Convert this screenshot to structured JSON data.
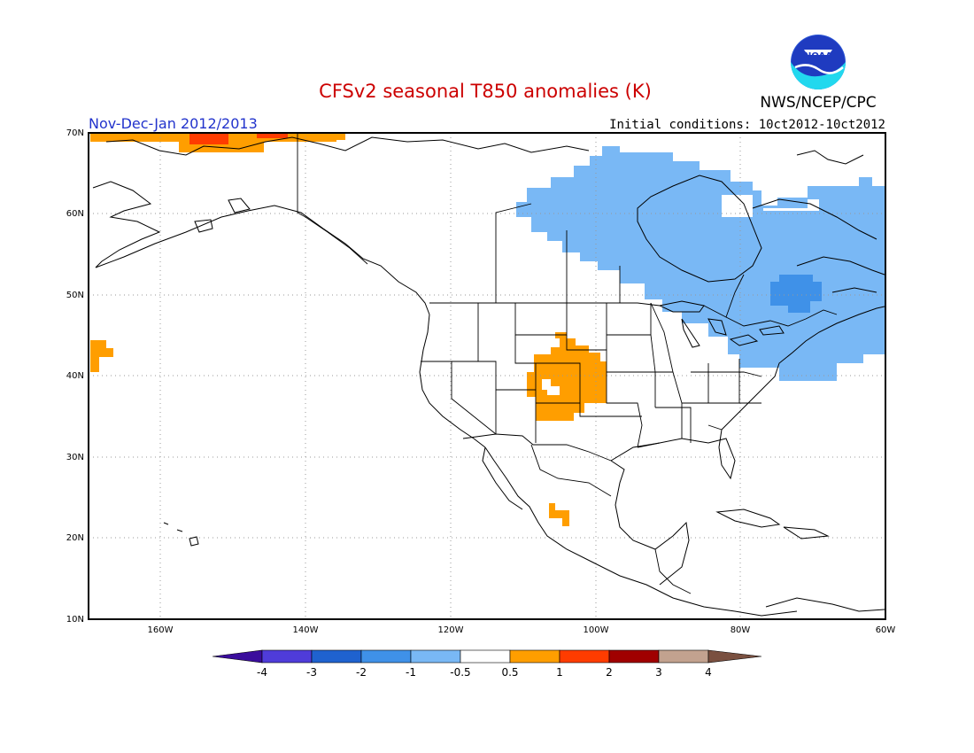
{
  "title": "CFSv2 seasonal T850 anomalies (K)",
  "period": "Nov-Dec-Jan 2012/2013",
  "initial_conditions": "Initial conditions: 10ct2012-10ct2012",
  "organization": "NWS/NCEP/CPC",
  "logo_text": "NOAA",
  "colors": {
    "title": "#cc0000",
    "period": "#2233cc",
    "neg4": "#3a0d9c",
    "neg3": "#4f3cd9",
    "neg2": "#1f62cf",
    "neg1": "#3f91e8",
    "neg05": "#79b8f5",
    "neutral": "#ffffff",
    "pos05": "#ff9e00",
    "pos1": "#ff3c00",
    "pos2": "#a00000",
    "pos3": "#c2a28f",
    "pos4": "#7a5040"
  },
  "axes": {
    "lon_labels": [
      "160W",
      "140W",
      "120W",
      "100W",
      "80W",
      "60W"
    ],
    "lat_labels": [
      "70N",
      "60N",
      "50N",
      "40N",
      "30N",
      "20N",
      "10N"
    ]
  },
  "colorbar": {
    "labels": [
      "-4",
      "-3",
      "-2",
      "-1",
      "-0.5",
      "0.5",
      "1",
      "2",
      "3",
      "4"
    ]
  },
  "anomaly_regions": [
    {
      "name": "Canada and northeastern US",
      "category": "-1 to -0.5"
    },
    {
      "name": "Quebec",
      "category": "-2 to -1"
    },
    {
      "name": "Northern Alaska coast",
      "category": "0.5 to 1"
    },
    {
      "name": "Central Rockies",
      "category": "0.5 to 1"
    },
    {
      "name": "Northeast Pacific",
      "category": "0.5 to 1"
    },
    {
      "name": "Western Mexico",
      "category": "0.5 to 1"
    }
  ]
}
